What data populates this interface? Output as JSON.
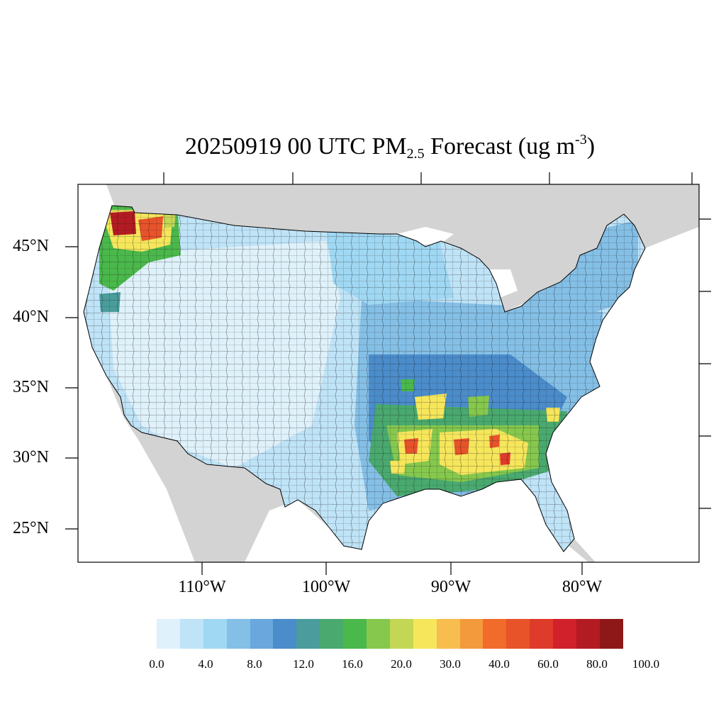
{
  "title": {
    "main": "20250919 00 UTC PM",
    "sub": "2.5",
    "unit_pre": " Forecast (ug m",
    "unit_sup": "-3",
    "unit_post": ")"
  },
  "lat_labels": [
    "45°N",
    "40°N",
    "35°N",
    "30°N",
    "25°N"
  ],
  "lon_labels": [
    "110°W",
    "100°W",
    "90°W",
    "80°W"
  ],
  "colorbar": {
    "colors": [
      "#dff1fa",
      "#bfe3f7",
      "#a0d8f3",
      "#84bfe6",
      "#69a7dc",
      "#4b8ccb",
      "#4a9d9c",
      "#49a96e",
      "#4ab84b",
      "#86c84d",
      "#c4d755",
      "#f6e65b",
      "#f7bd4e",
      "#f39a3c",
      "#f16b2a",
      "#e8532a",
      "#df3b2a",
      "#d1212a",
      "#b31b22",
      "#8e1818"
    ],
    "labels": [
      "0.0",
      "4.0",
      "8.0",
      "12.0",
      "16.0",
      "20.0",
      "30.0",
      "40.0",
      "60.0",
      "80.0",
      "100.0"
    ]
  },
  "colors": {
    "land_outside": "#d3d3d3",
    "ocean": "#ffffff",
    "frame": "#000000"
  }
}
